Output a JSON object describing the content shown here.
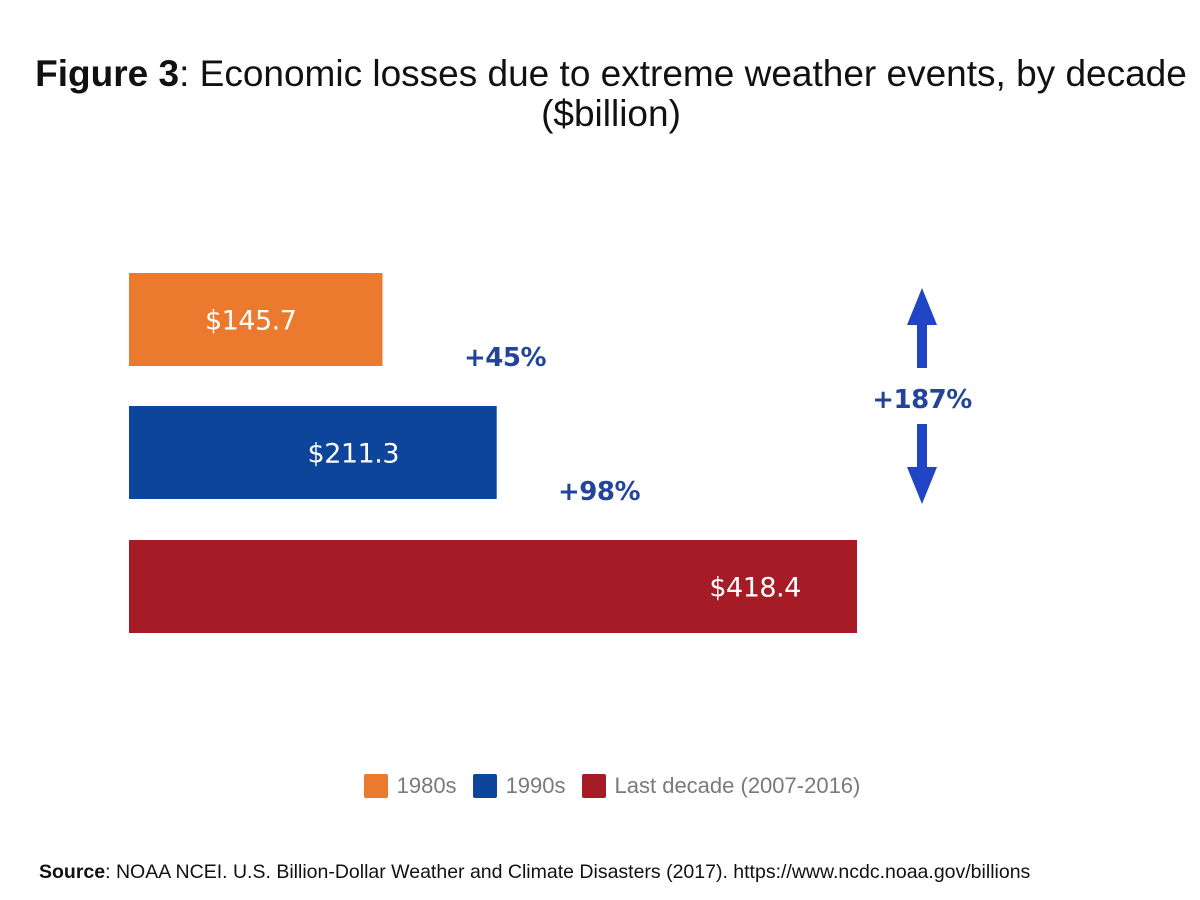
{
  "chart_data": {
    "type": "bar",
    "orientation": "horizontal",
    "title_prefix": "Figure 3",
    "title_text": ": Economic losses due to extreme weather events, by decade ($billion)",
    "categories": [
      "1980s",
      "1990s",
      "Last decade (2007-2016)"
    ],
    "values": [
      145.7,
      211.3,
      418.4
    ],
    "value_labels": [
      "$145.7",
      "$211.3",
      "$418.4"
    ],
    "colors": [
      "#ec7a2e",
      "#0c4599",
      "#a51c27"
    ],
    "xlim": [
      0,
      418.4
    ],
    "grid": false,
    "legend_position": "bottom",
    "annotations": {
      "change_1980s_1990s": "+45%",
      "change_1990s_last": "+98%",
      "change_total": "+187%",
      "arrow_color": "#1f45c4",
      "text_color": "#24449a"
    },
    "legend": [
      {
        "label": "1980s",
        "color": "#ec7a2e"
      },
      {
        "label": "1990s",
        "color": "#0c4599"
      },
      {
        "label": "Last decade (2007-2016)",
        "color": "#a51c27"
      }
    ],
    "source_label": "Source",
    "source_text": ": NOAA NCEI. U.S. Billion-Dollar Weather and Climate Disasters (2017). https://www.ncdc.noaa.gov/billions"
  }
}
